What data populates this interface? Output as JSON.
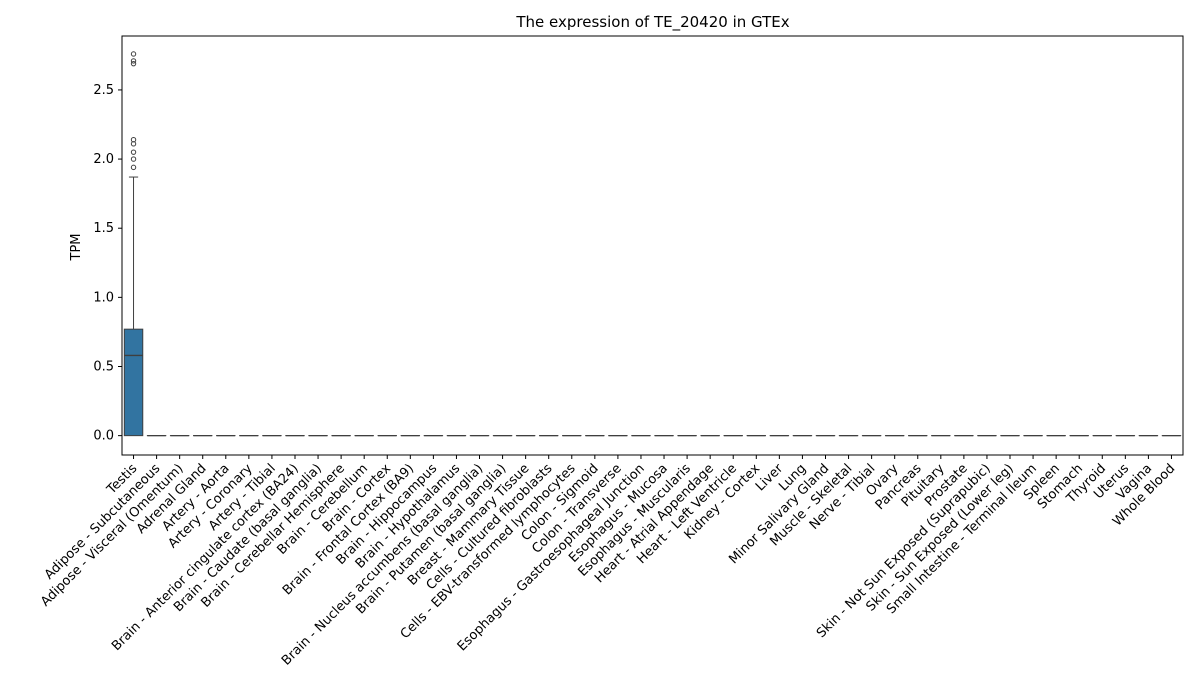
{
  "chart_data": {
    "type": "box",
    "title": "The expression of TE_20420 in GTEx",
    "xlabel": "",
    "ylabel": "TPM",
    "ylim": [
      -0.14,
      2.89
    ],
    "yticks": [
      0.0,
      0.5,
      1.0,
      1.5,
      2.0,
      2.5
    ],
    "ytick_labels": [
      "0.0",
      "0.5",
      "1.0",
      "1.5",
      "2.0",
      "2.5"
    ],
    "grid": false,
    "box_color": "#3274a1",
    "categories": [
      "Testis",
      "Adipose - Subcutaneous",
      "Adipose - Visceral (Omentum)",
      "Adrenal Gland",
      "Artery - Aorta",
      "Artery - Coronary",
      "Artery - Tibial",
      "Brain - Anterior cingulate cortex (BA24)",
      "Brain - Caudate (basal ganglia)",
      "Brain - Cerebellar Hemisphere",
      "Brain - Cerebellum",
      "Brain - Cortex",
      "Brain - Frontal Cortex (BA9)",
      "Brain - Hippocampus",
      "Brain - Hypothalamus",
      "Brain - Nucleus accumbens (basal ganglia)",
      "Brain - Putamen (basal ganglia)",
      "Breast - Mammary Tissue",
      "Cells - Cultured fibroblasts",
      "Cells - EBV-transformed lymphocytes",
      "Colon - Sigmoid",
      "Colon - Transverse",
      "Esophagus - Gastroesophageal Junction",
      "Esophagus - Mucosa",
      "Esophagus - Muscularis",
      "Heart - Atrial Appendage",
      "Heart - Left Ventricle",
      "Kidney - Cortex",
      "Liver",
      "Lung",
      "Minor Salivary Gland",
      "Muscle - Skeletal",
      "Nerve - Tibial",
      "Ovary",
      "Pancreas",
      "Pituitary",
      "Prostate",
      "Skin - Not Sun Exposed (Suprapubic)",
      "Skin - Sun Exposed (Lower leg)",
      "Small Intestine - Terminal Ileum",
      "Spleen",
      "Stomach",
      "Thyroid",
      "Uterus",
      "Vagina",
      "Whole Blood"
    ],
    "boxes": [
      {
        "category": "Testis",
        "q1": 0.0,
        "median": 0.58,
        "q3": 0.77,
        "whisker_low": 0.0,
        "whisker_high": 1.87,
        "outliers": [
          1.94,
          2.0,
          2.05,
          2.11,
          2.14,
          2.69,
          2.71,
          2.76
        ]
      }
    ],
    "default_box": {
      "q1": 0.0,
      "median": 0.0,
      "q3": 0.0,
      "whisker_low": 0.0,
      "whisker_high": 0.0,
      "outliers": []
    }
  }
}
